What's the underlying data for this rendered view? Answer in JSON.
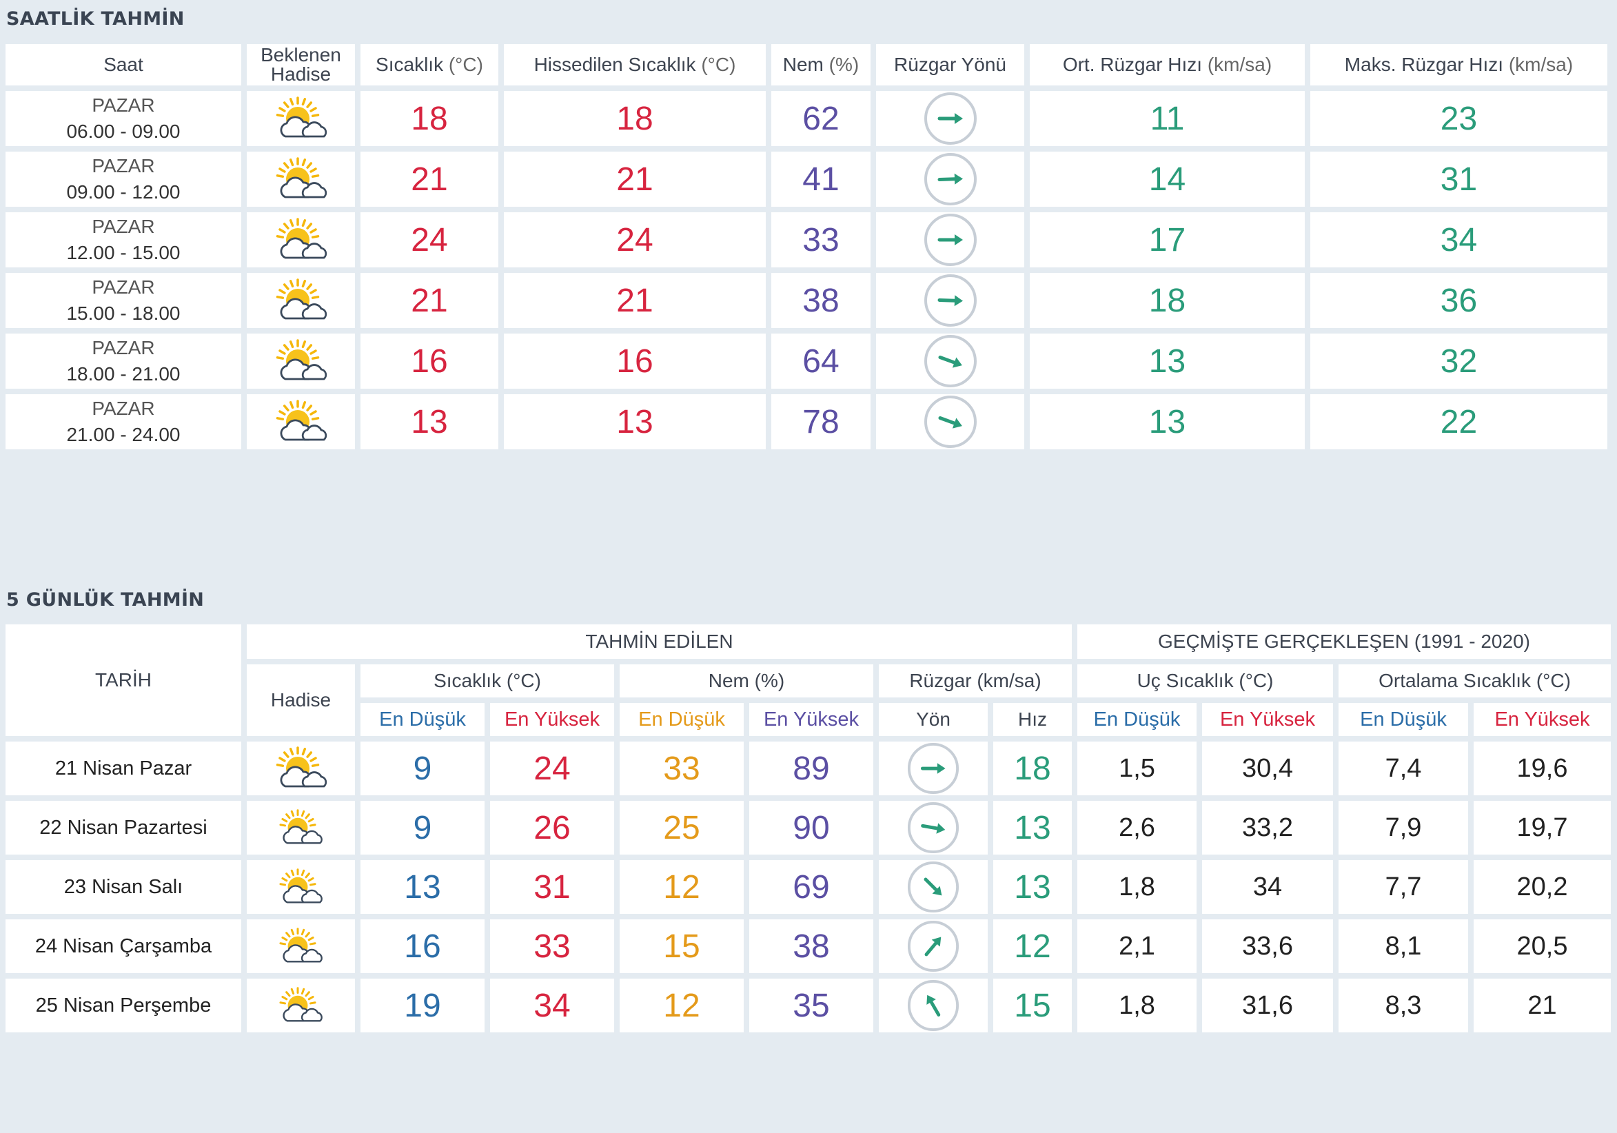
{
  "hourly": {
    "title": "SAATLİK TAHMİN",
    "headers": {
      "saat": "Saat",
      "hadise_1": "Beklenen",
      "hadise_2": "Hadise",
      "temp": "Sıcaklık",
      "temp_unit": "(°C)",
      "feels": "Hissedilen Sıcaklık",
      "feels_unit": "(°C)",
      "humidity": "Nem",
      "humidity_unit": "(%)",
      "wind_dir": "Rüzgar Yönü",
      "wind_avg": "Ort. Rüzgar Hızı",
      "wind_avg_unit": "(km/sa)",
      "wind_max": "Maks. Rüzgar Hızı",
      "wind_max_unit": "(km/sa)"
    },
    "rows": [
      {
        "day": "PAZAR",
        "time": "06.00 - 09.00",
        "icon": "partly-cloudy-icon",
        "temp": "18",
        "feels": "18",
        "humidity": "62",
        "wind_dir_deg": 90,
        "wind_avg": "11",
        "wind_max": "23"
      },
      {
        "day": "PAZAR",
        "time": "09.00 - 12.00",
        "icon": "partly-cloudy-icon",
        "temp": "21",
        "feels": "21",
        "humidity": "41",
        "wind_dir_deg": 88,
        "wind_avg": "14",
        "wind_max": "31"
      },
      {
        "day": "PAZAR",
        "time": "12.00 - 15.00",
        "icon": "partly-cloudy-icon",
        "temp": "24",
        "feels": "24",
        "humidity": "33",
        "wind_dir_deg": 90,
        "wind_avg": "17",
        "wind_max": "34"
      },
      {
        "day": "PAZAR",
        "time": "15.00 - 18.00",
        "icon": "partly-cloudy-icon",
        "temp": "21",
        "feels": "21",
        "humidity": "38",
        "wind_dir_deg": 92,
        "wind_avg": "18",
        "wind_max": "36"
      },
      {
        "day": "PAZAR",
        "time": "18.00 - 21.00",
        "icon": "partly-cloudy-icon",
        "temp": "16",
        "feels": "16",
        "humidity": "64",
        "wind_dir_deg": 110,
        "wind_avg": "13",
        "wind_max": "32"
      },
      {
        "day": "PAZAR",
        "time": "21.00 - 24.00",
        "icon": "partly-cloudy-icon",
        "temp": "13",
        "feels": "13",
        "humidity": "78",
        "wind_dir_deg": 110,
        "wind_avg": "13",
        "wind_max": "22"
      }
    ]
  },
  "daily": {
    "title": "5 GÜNLÜK TAHMİN",
    "headers": {
      "date": "TARİH",
      "forecast": "TAHMİN EDİLEN",
      "history": "GEÇMİŞTE GERÇEKLEŞEN (1991 - 2020)",
      "hadise": "Hadise",
      "temp": "Sıcaklık (°C)",
      "humidity": "Nem (%)",
      "wind": "Rüzgar (km/sa)",
      "extreme": "Uç Sıcaklık (°C)",
      "average": "Ortalama Sıcaklık (°C)",
      "min": "En Düşük",
      "max": "En Yüksek",
      "dir": "Yön",
      "speed": "Hız"
    },
    "rows": [
      {
        "date": "21 Nisan Pazar",
        "icon": "partly-cloudy-icon",
        "tmin": "9",
        "tmax": "24",
        "hmin": "33",
        "hmax": "89",
        "wind_dir_deg": 90,
        "speed": "18",
        "ext_min": "1,5",
        "ext_max": "30,4",
        "avg_min": "7,4",
        "avg_max": "19,6"
      },
      {
        "date": "22 Nisan Pazartesi",
        "icon": "partly-cloudy-icon",
        "tmin": "9",
        "tmax": "26",
        "hmin": "25",
        "hmax": "90",
        "wind_dir_deg": 100,
        "speed": "13",
        "ext_min": "2,6",
        "ext_max": "33,2",
        "avg_min": "7,9",
        "avg_max": "19,7"
      },
      {
        "date": "23 Nisan Salı",
        "icon": "partly-cloudy-icon",
        "tmin": "13",
        "tmax": "31",
        "hmin": "12",
        "hmax": "69",
        "wind_dir_deg": 135,
        "speed": "13",
        "ext_min": "1,8",
        "ext_max": "34",
        "avg_min": "7,7",
        "avg_max": "20,2"
      },
      {
        "date": "24 Nisan Çarşamba",
        "icon": "partly-cloudy-icon",
        "tmin": "16",
        "tmax": "33",
        "hmin": "15",
        "hmax": "38",
        "wind_dir_deg": 40,
        "speed": "12",
        "ext_min": "2,1",
        "ext_max": "33,6",
        "avg_min": "8,1",
        "avg_max": "20,5"
      },
      {
        "date": "25 Nisan Perşembe",
        "icon": "partly-cloudy-icon",
        "tmin": "19",
        "tmax": "34",
        "hmin": "12",
        "hmax": "35",
        "wind_dir_deg": -30,
        "speed": "15",
        "ext_min": "1,8",
        "ext_max": "31,6",
        "avg_min": "8,3",
        "avg_max": "21"
      }
    ]
  },
  "colors": {
    "temp": "#d7243f",
    "humidity": "#5b4fa3",
    "wind": "#2a9c7a",
    "min_blue": "#2b6da8",
    "orange": "#e49a1a",
    "background": "#e4ebf1"
  }
}
